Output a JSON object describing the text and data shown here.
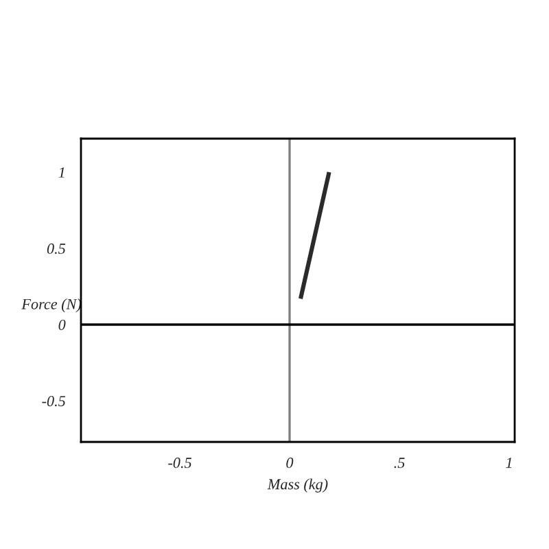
{
  "chart_data": {
    "type": "line",
    "xlabel": "Mass (kg)",
    "ylabel": "Force (N)",
    "x": [
      0.05,
      0.18
    ],
    "series": [
      {
        "color": "#2b2b2b",
        "values": [
          0.17,
          1.0
        ]
      }
    ],
    "xlim": [
      -0.95,
      1.025
    ],
    "xticks": [
      -0.5,
      0,
      {
        "value": 0.5,
        "label": ".5"
      },
      1
    ],
    "ylim": [
      -0.77,
      1.22
    ],
    "yticks": [
      -0.5,
      0,
      0.5,
      1
    ],
    "ref_lines": [
      {
        "axis": "x",
        "value": 0,
        "color": "#808080"
      },
      {
        "axis": "y",
        "value": 0,
        "color": "#000000"
      }
    ],
    "marker": "none",
    "line_style": "solid"
  }
}
